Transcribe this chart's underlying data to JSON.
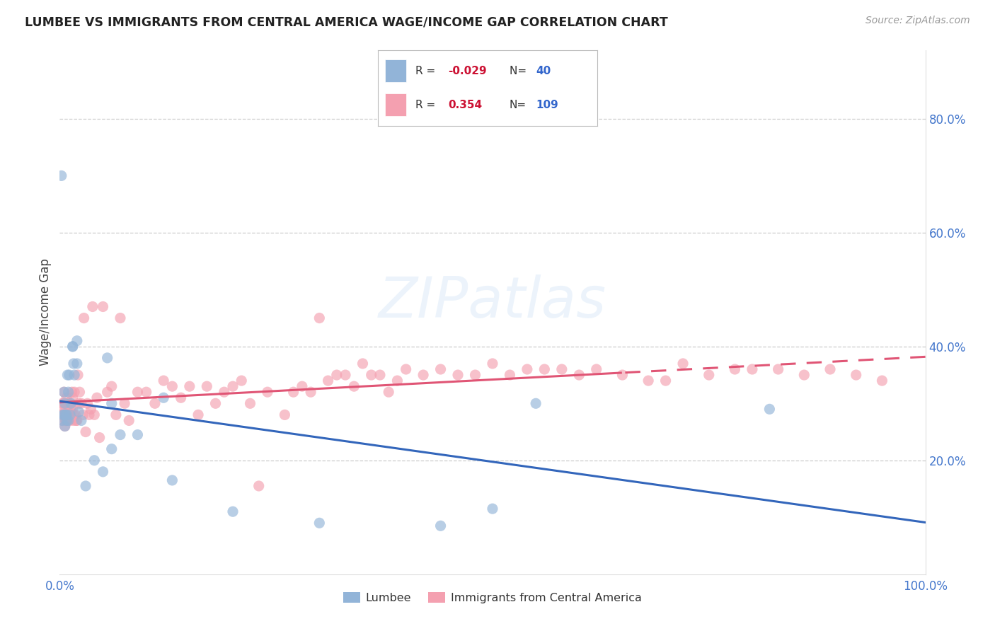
{
  "title": "LUMBEE VS IMMIGRANTS FROM CENTRAL AMERICA WAGE/INCOME GAP CORRELATION CHART",
  "source": "Source: ZipAtlas.com",
  "ylabel": "Wage/Income Gap",
  "legend_lumbee": "Lumbee",
  "legend_immigrants": "Immigrants from Central America",
  "R_lumbee": "-0.029",
  "N_lumbee": "40",
  "R_immigrants": "0.354",
  "N_immigrants": "109",
  "blue_color": "#92B4D8",
  "pink_color": "#F4A0B0",
  "blue_line_color": "#3366BB",
  "pink_line_color": "#E05575",
  "watermark": "ZIPatlas",
  "xlim": [
    0.0,
    1.0
  ],
  "ylim": [
    0.0,
    0.92
  ],
  "ytick_vals": [
    0.2,
    0.4,
    0.6,
    0.8
  ],
  "ytick_labels": [
    "20.0%",
    "40.0%",
    "60.0%",
    "80.0%"
  ],
  "lumbee_x": [
    0.002,
    0.003,
    0.004,
    0.005,
    0.005,
    0.006,
    0.006,
    0.007,
    0.008,
    0.008,
    0.009,
    0.01,
    0.01,
    0.011,
    0.012,
    0.013,
    0.015,
    0.015,
    0.016,
    0.017,
    0.02,
    0.02,
    0.022,
    0.025,
    0.03,
    0.04,
    0.05,
    0.055,
    0.06,
    0.06,
    0.07,
    0.09,
    0.12,
    0.13,
    0.2,
    0.3,
    0.44,
    0.5,
    0.55,
    0.82
  ],
  "lumbee_y": [
    0.7,
    0.27,
    0.28,
    0.32,
    0.28,
    0.26,
    0.3,
    0.28,
    0.28,
    0.27,
    0.35,
    0.32,
    0.27,
    0.35,
    0.28,
    0.3,
    0.4,
    0.4,
    0.37,
    0.35,
    0.41,
    0.37,
    0.285,
    0.27,
    0.155,
    0.2,
    0.18,
    0.38,
    0.3,
    0.22,
    0.245,
    0.245,
    0.31,
    0.165,
    0.11,
    0.09,
    0.085,
    0.115,
    0.3,
    0.29
  ],
  "immigrants_x": [
    0.001,
    0.002,
    0.003,
    0.003,
    0.004,
    0.004,
    0.005,
    0.005,
    0.006,
    0.006,
    0.007,
    0.007,
    0.007,
    0.008,
    0.008,
    0.009,
    0.009,
    0.01,
    0.01,
    0.011,
    0.011,
    0.012,
    0.012,
    0.013,
    0.013,
    0.014,
    0.015,
    0.015,
    0.016,
    0.016,
    0.017,
    0.018,
    0.019,
    0.02,
    0.021,
    0.022,
    0.023,
    0.025,
    0.027,
    0.028,
    0.03,
    0.032,
    0.034,
    0.036,
    0.038,
    0.04,
    0.043,
    0.046,
    0.05,
    0.055,
    0.06,
    0.065,
    0.07,
    0.075,
    0.08,
    0.09,
    0.1,
    0.11,
    0.12,
    0.13,
    0.14,
    0.15,
    0.16,
    0.17,
    0.18,
    0.19,
    0.2,
    0.21,
    0.22,
    0.23,
    0.24,
    0.26,
    0.27,
    0.28,
    0.29,
    0.3,
    0.31,
    0.32,
    0.33,
    0.34,
    0.35,
    0.36,
    0.37,
    0.38,
    0.39,
    0.4,
    0.42,
    0.44,
    0.46,
    0.48,
    0.5,
    0.52,
    0.54,
    0.56,
    0.58,
    0.6,
    0.62,
    0.65,
    0.68,
    0.7,
    0.72,
    0.75,
    0.78,
    0.8,
    0.83,
    0.86,
    0.89,
    0.92,
    0.95
  ],
  "immigrants_y": [
    0.28,
    0.29,
    0.3,
    0.27,
    0.28,
    0.3,
    0.32,
    0.28,
    0.26,
    0.3,
    0.27,
    0.29,
    0.27,
    0.31,
    0.27,
    0.3,
    0.27,
    0.28,
    0.3,
    0.28,
    0.29,
    0.27,
    0.3,
    0.28,
    0.29,
    0.32,
    0.29,
    0.31,
    0.27,
    0.28,
    0.32,
    0.28,
    0.27,
    0.27,
    0.35,
    0.3,
    0.32,
    0.3,
    0.28,
    0.45,
    0.25,
    0.3,
    0.28,
    0.29,
    0.47,
    0.28,
    0.31,
    0.24,
    0.47,
    0.32,
    0.33,
    0.28,
    0.45,
    0.3,
    0.27,
    0.32,
    0.32,
    0.3,
    0.34,
    0.33,
    0.31,
    0.33,
    0.28,
    0.33,
    0.3,
    0.32,
    0.33,
    0.34,
    0.3,
    0.155,
    0.32,
    0.28,
    0.32,
    0.33,
    0.32,
    0.45,
    0.34,
    0.35,
    0.35,
    0.33,
    0.37,
    0.35,
    0.35,
    0.32,
    0.34,
    0.36,
    0.35,
    0.36,
    0.35,
    0.35,
    0.37,
    0.35,
    0.36,
    0.36,
    0.36,
    0.35,
    0.36,
    0.35,
    0.34,
    0.34,
    0.37,
    0.35,
    0.36,
    0.36,
    0.36,
    0.35,
    0.36,
    0.35,
    0.34
  ]
}
